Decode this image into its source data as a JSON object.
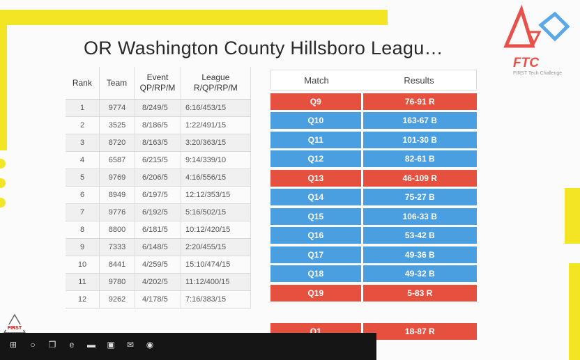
{
  "title": "OR Washington County Hillsboro Leagu…",
  "logo": {
    "text": "FTC",
    "subtitle": "FIRST Tech Challenge",
    "first_badge": "FIRST"
  },
  "colors": {
    "red": "#e5503f",
    "blue": "#4a9fe0",
    "blue_light": "#6aa6e8",
    "yellow": "#f4e524"
  },
  "rankings": {
    "headers": {
      "rank": "Rank",
      "team": "Team",
      "event_line1": "Event",
      "event_line2": "QP/RP/M",
      "league_line1": "League",
      "league_line2": "R/QP/RP/M"
    },
    "rows": [
      {
        "rank": "1",
        "team": "9774",
        "event": "8/249/5",
        "league": "6:16/453/15"
      },
      {
        "rank": "2",
        "team": "3525",
        "event": "8/186/5",
        "league": "1:22/491/15"
      },
      {
        "rank": "3",
        "team": "8720",
        "event": "8/163/5",
        "league": "3:20/363/15"
      },
      {
        "rank": "4",
        "team": "6587",
        "event": "6/215/5",
        "league": "9:14/339/10"
      },
      {
        "rank": "5",
        "team": "9769",
        "event": "6/206/5",
        "league": "4:16/556/15"
      },
      {
        "rank": "6",
        "team": "8949",
        "event": "6/197/5",
        "league": "12:12/353/15"
      },
      {
        "rank": "7",
        "team": "9776",
        "event": "6/192/5",
        "league": "5:16/502/15"
      },
      {
        "rank": "8",
        "team": "8800",
        "event": "6/181/5",
        "league": "10:12/420/15"
      },
      {
        "rank": "9",
        "team": "7333",
        "event": "6/148/5",
        "league": "2:20/455/15"
      },
      {
        "rank": "10",
        "team": "8441",
        "event": "4/259/5",
        "league": "15:10/474/15"
      },
      {
        "rank": "11",
        "team": "9780",
        "event": "4/202/5",
        "league": "11:12/400/15"
      },
      {
        "rank": "12",
        "team": "9262",
        "event": "4/178/5",
        "league": "7:16/383/15"
      }
    ]
  },
  "matches": {
    "headers": {
      "match": "Match",
      "results": "Results"
    },
    "rows": [
      {
        "match": "Q9",
        "result": "76-91 R",
        "winner": "red"
      },
      {
        "match": "Q10",
        "result": "163-67 B",
        "winner": "blue"
      },
      {
        "match": "Q11",
        "result": "101-30 B",
        "winner": "blue"
      },
      {
        "match": "Q12",
        "result": "82-61 B",
        "winner": "blue"
      },
      {
        "match": "Q13",
        "result": "46-109 R",
        "winner": "red"
      },
      {
        "match": "Q14",
        "result": "75-27 B",
        "winner": "blue"
      },
      {
        "match": "Q15",
        "result": "106-33 B",
        "winner": "blue"
      },
      {
        "match": "Q16",
        "result": "53-42 B",
        "winner": "blue"
      },
      {
        "match": "Q17",
        "result": "49-36 B",
        "winner": "blue"
      },
      {
        "match": "Q18",
        "result": "49-32 B",
        "winner": "blue"
      },
      {
        "match": "Q19",
        "result": "5-83 R",
        "winner": "red"
      }
    ],
    "extra_rows": [
      {
        "match": "Q1",
        "result": "18-87 R",
        "winner": "red"
      }
    ]
  },
  "taskbar": {
    "icons": [
      "windows-icon",
      "search-icon",
      "task-view-icon",
      "edge-icon",
      "folder-icon",
      "store-icon",
      "mail-icon",
      "chrome-icon"
    ]
  }
}
